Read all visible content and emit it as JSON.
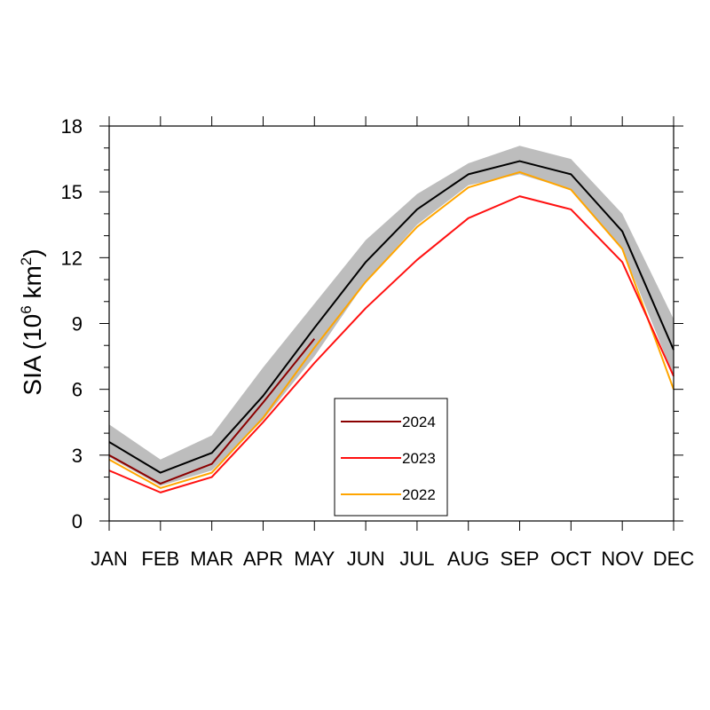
{
  "chart_data": {
    "type": "line",
    "categories": [
      "JAN",
      "FEB",
      "MAR",
      "APR",
      "MAY",
      "JUN",
      "JUL",
      "AUG",
      "SEP",
      "OCT",
      "NOV",
      "DEC"
    ],
    "ylabel": {
      "base": "SIA (10",
      "sup1": "6",
      "mid": " km",
      "sup2": "2",
      "end": ")"
    },
    "ylim": [
      0,
      18
    ],
    "yticks": [
      0,
      3,
      6,
      9,
      12,
      15,
      18
    ],
    "grid": false,
    "legend_position": "bottom-center",
    "mean": {
      "values": [
        3.6,
        2.2,
        3.1,
        5.7,
        8.8,
        11.8,
        14.2,
        15.8,
        16.4,
        15.8,
        13.2,
        7.8
      ],
      "color": "#000000"
    },
    "range_band": {
      "lower": [
        2.9,
        1.6,
        2.3,
        4.6,
        7.5,
        10.9,
        13.5,
        15.3,
        15.8,
        15.1,
        12.4,
        6.6
      ],
      "upper": [
        4.4,
        2.8,
        3.9,
        7.0,
        9.9,
        12.8,
        14.9,
        16.3,
        17.1,
        16.5,
        14.0,
        9.2
      ],
      "color": "#bdbdbd"
    },
    "series": [
      {
        "name": "2024",
        "color": "#8b0000",
        "values": [
          3.0,
          1.7,
          2.6,
          5.4,
          8.3,
          null,
          null,
          null,
          null,
          null,
          null,
          null
        ]
      },
      {
        "name": "2023",
        "color": "#ff1010",
        "values": [
          2.3,
          1.3,
          2.0,
          4.5,
          7.2,
          9.7,
          11.9,
          13.8,
          14.8,
          14.2,
          11.8,
          6.6
        ]
      },
      {
        "name": "2022",
        "color": "#ffa500",
        "values": [
          2.8,
          1.5,
          2.2,
          4.7,
          7.9,
          10.9,
          13.4,
          15.2,
          15.9,
          15.1,
          12.4,
          6.0
        ]
      }
    ]
  }
}
